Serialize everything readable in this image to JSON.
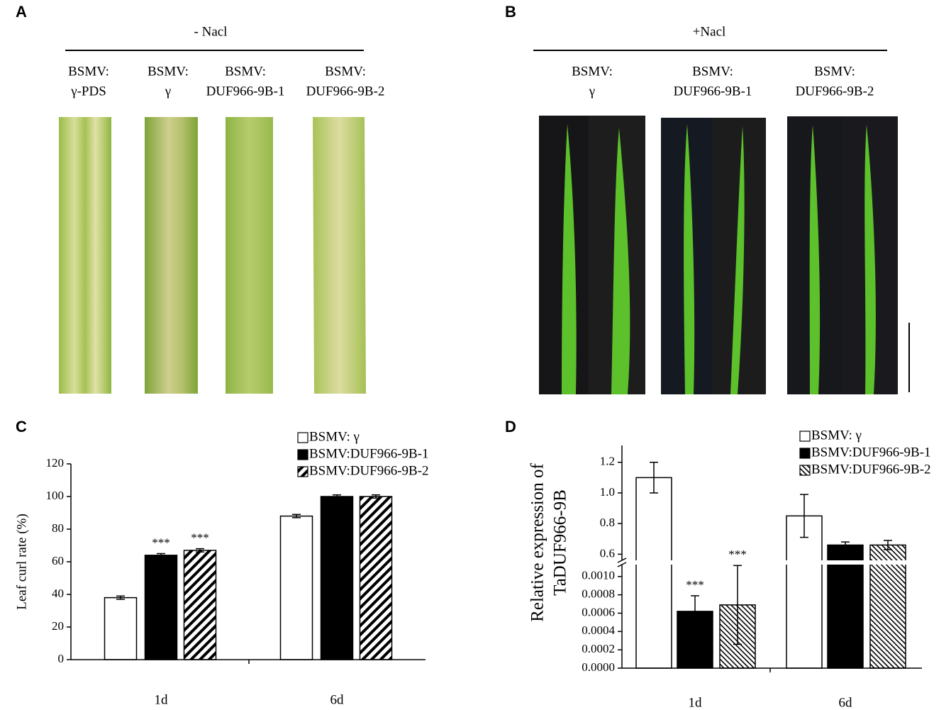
{
  "panels": [
    {
      "label": "A",
      "condition": "- Nacl",
      "samples": [
        [
          "BSMV:",
          "γ-PDS"
        ],
        [
          "BSMV:",
          "γ"
        ],
        [
          "BSMV:",
          "DUF966-9B-1"
        ],
        [
          "BSMV:",
          "DUF966-9B-2"
        ]
      ]
    },
    {
      "label": "B",
      "condition": "+Nacl",
      "samples": [
        [
          "BSMV:",
          "γ"
        ],
        [
          "BSMV:",
          "DUF966-9B-1"
        ],
        [
          "BSMV:",
          "DUF966-9B-2"
        ]
      ]
    }
  ],
  "chart_data": [
    {
      "type": "bar",
      "label": "C",
      "y_label": "Leaf curl rate (%)",
      "categories": [
        "1d",
        "6d"
      ],
      "ylim": [
        0,
        120
      ],
      "yticks": [
        0,
        20,
        40,
        60,
        80,
        100,
        120
      ],
      "series": [
        {
          "name": "BSMV: γ",
          "color": "#ffffff",
          "hatch": null,
          "values": [
            38,
            88
          ],
          "errors": [
            1,
            1
          ],
          "annotations": [
            null,
            null
          ]
        },
        {
          "name": "BSMV:DUF966-9B-1",
          "color": "#000000",
          "hatch": null,
          "values": [
            64,
            100
          ],
          "errors": [
            1,
            1
          ],
          "annotations": [
            "***",
            null
          ]
        },
        {
          "name": "BSMV:DUF966-9B-2",
          "color": "#ffffff",
          "hatch": "/",
          "values": [
            67,
            100
          ],
          "errors": [
            1,
            1
          ],
          "annotations": [
            "***",
            null
          ]
        }
      ]
    },
    {
      "type": "broken_bar",
      "label": "D",
      "y_label": [
        "Relative expression of",
        "TaDUF966-9B"
      ],
      "categories": [
        "1d",
        "6d"
      ],
      "ylim_lower": [
        0,
        0.00113
      ],
      "yticks_lower": [
        {
          "value": 0,
          "label": "0.0000"
        },
        {
          "value": 0.0002,
          "label": "0.0002"
        },
        {
          "value": 0.0004,
          "label": "0.0004"
        },
        {
          "value": 0.0006,
          "label": "0.0006"
        },
        {
          "value": 0.0008,
          "label": "0.0008"
        },
        {
          "value": 0.001,
          "label": "0.0010"
        }
      ],
      "ylim_upper": [
        0.56,
        1.31
      ],
      "yticks_upper": [
        0.6,
        0.8,
        {
          "value": 1,
          "label": "1.0"
        },
        1.2
      ],
      "series": [
        {
          "name": "BSMV: γ",
          "color": "#ffffff",
          "hatch": null,
          "values": [
            1.1,
            0.85
          ],
          "errors": [
            0.1,
            0.14
          ],
          "annotations": [
            null,
            null
          ]
        },
        {
          "name": "BSMV:DUF966-9B-1",
          "color": "#000000",
          "hatch": null,
          "values": [
            0.00062,
            0.66
          ],
          "errors": [
            0.00017,
            0.02
          ],
          "annotations": [
            "***",
            null
          ]
        },
        {
          "name": "BSMV:DUF966-9B-2",
          "color": "#ffffff",
          "hatch": "\\",
          "values": [
            0.00069,
            0.66
          ],
          "errors": [
            0.00043,
            0.03
          ],
          "annotations": [
            "***",
            null
          ]
        }
      ]
    }
  ]
}
